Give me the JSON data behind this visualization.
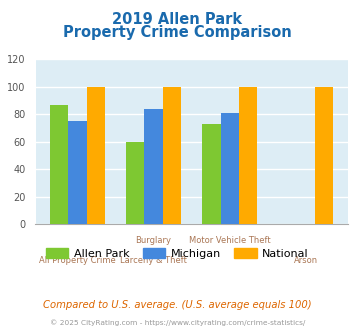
{
  "title_line1": "2019 Allen Park",
  "title_line2": "Property Crime Comparison",
  "groups": [
    {
      "label_row1": "",
      "label_row2": "All Property Crime",
      "allen_park": 87,
      "michigan": 75,
      "national": 100
    },
    {
      "label_row1": "Burglary",
      "label_row2": "Larceny & Theft",
      "allen_park": 60,
      "michigan": 84,
      "national": 100
    },
    {
      "label_row1": "Motor Vehicle Theft",
      "label_row2": "",
      "allen_park": 73,
      "michigan": 81,
      "national": 100
    },
    {
      "label_row1": "",
      "label_row2": "Arson",
      "allen_park": 0,
      "michigan": 0,
      "national": 100
    }
  ],
  "color_allen_park": "#7ec832",
  "color_michigan": "#4488dd",
  "color_national": "#ffaa00",
  "ylim": [
    0,
    120
  ],
  "yticks": [
    0,
    20,
    40,
    60,
    80,
    100,
    120
  ],
  "background_color": "#ddedf5",
  "title_color": "#1a6aad",
  "label_color": "#aa7755",
  "footnote1": "Compared to U.S. average. (U.S. average equals 100)",
  "footnote2": "© 2025 CityRating.com - https://www.cityrating.com/crime-statistics/",
  "footnote1_color": "#dd6600",
  "footnote2_color": "#999999"
}
